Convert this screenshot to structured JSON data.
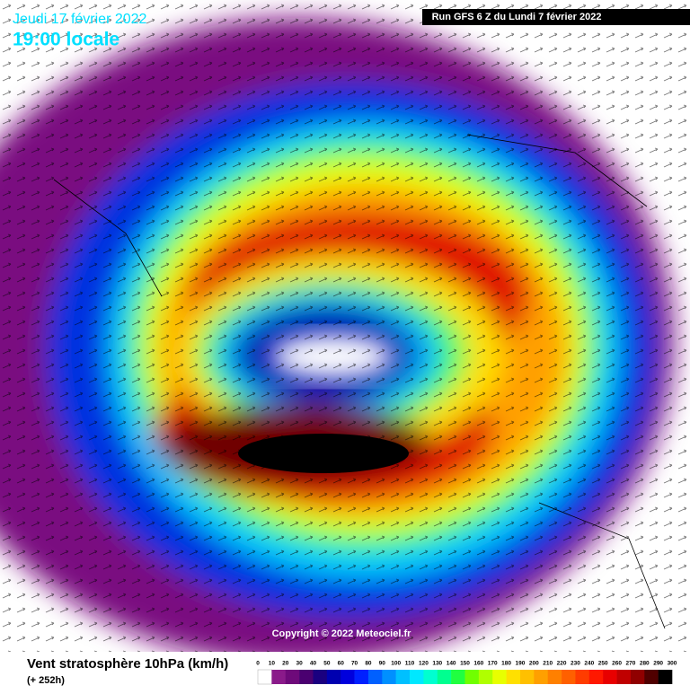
{
  "header": {
    "date": "Jeudi 17 février 2022",
    "time": "19:00 locale",
    "run": "Run GFS 6 Z du Lundi 7 février 2022"
  },
  "copyright": "Copyright © 2022 Meteociel.fr",
  "legend": {
    "title": "Vent stratosphère 10hPa (km/h)",
    "lead": "(+ 252h)",
    "ticks": [
      0,
      10,
      20,
      30,
      40,
      50,
      60,
      70,
      80,
      90,
      100,
      110,
      120,
      130,
      140,
      150,
      160,
      170,
      180,
      190,
      200,
      210,
      220,
      230,
      240,
      250,
      260,
      270,
      280,
      290,
      300
    ],
    "colors": [
      "#ffffff",
      "#8a1a8a",
      "#6e0a7a",
      "#4a0070",
      "#1a0080",
      "#0000b0",
      "#0000dd",
      "#0020ff",
      "#0060ff",
      "#0090ff",
      "#00c0ff",
      "#00e8ff",
      "#00ffd0",
      "#00ff90",
      "#20ff40",
      "#70ff00",
      "#b0ff00",
      "#e8ff00",
      "#ffe000",
      "#ffc000",
      "#ffa000",
      "#ff8000",
      "#ff6000",
      "#ff3c00",
      "#ff1800",
      "#e80000",
      "#c00000",
      "#900000",
      "#500000",
      "#000000"
    ]
  }
}
